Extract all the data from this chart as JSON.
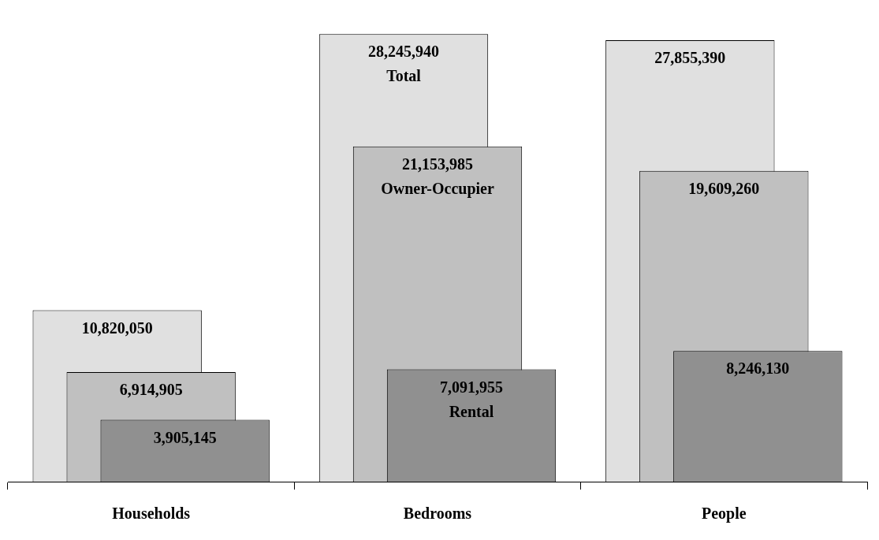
{
  "chart_data": {
    "type": "bar",
    "categories": [
      "Households",
      "Bedrooms",
      "People"
    ],
    "series": [
      {
        "color": "#e0e0e0",
        "values": [
          10820050,
          28245940,
          27855390
        ],
        "value_labels": [
          "10,820,050",
          "28,245,940",
          "27,855,390"
        ]
      },
      {
        "color": "#c0c0c0",
        "values": [
          6914905,
          21153985,
          19609260
        ],
        "value_labels": [
          "6,914,905",
          "21,153,985",
          "19,609,260"
        ]
      },
      {
        "color": "#909090",
        "values": [
          3905145,
          7091955,
          8246130
        ],
        "value_labels": [
          "3,905,145",
          "7,091,955",
          "8,246,130"
        ]
      }
    ],
    "grid": false,
    "legend": false,
    "tick_labels": "x",
    "annotations": [
      {
        "text": "Total",
        "x": "Bedrooms",
        "y": 28245940
      },
      {
        "text": "Owner-Occupier",
        "x": "Bedrooms",
        "y": 21153985
      },
      {
        "text": "Rental",
        "x": "Bedrooms",
        "y": 7091955
      }
    ]
  }
}
